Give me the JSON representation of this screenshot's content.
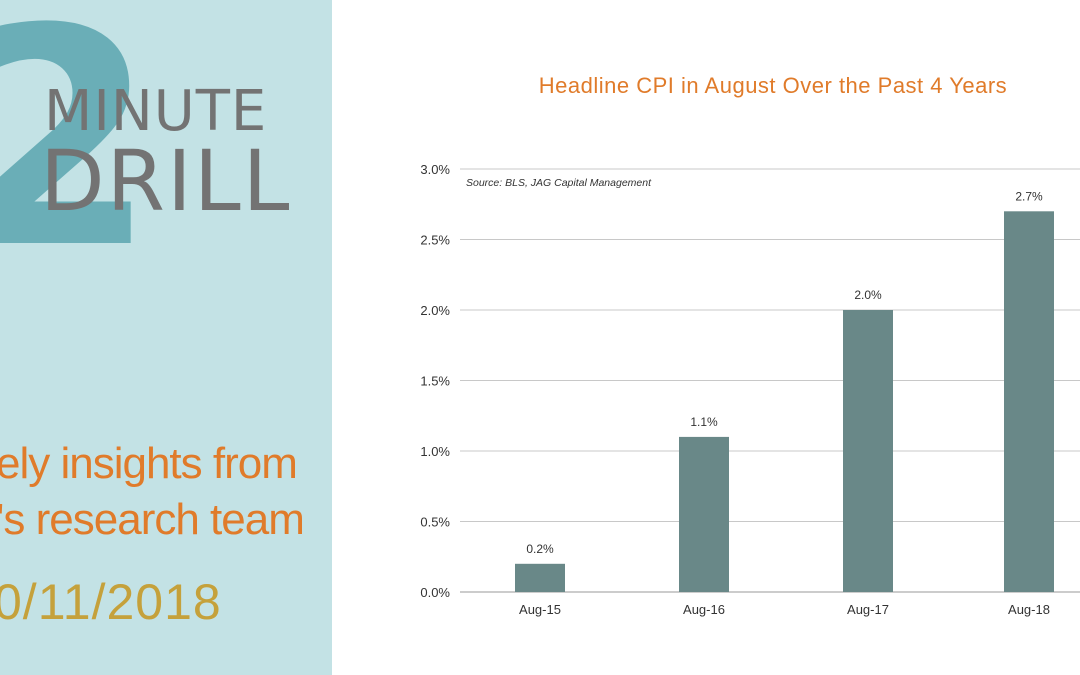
{
  "brand": {
    "line1": "MINUTE",
    "line2": "DRILL",
    "numeral": "2",
    "tagline_line1": "ely insights from",
    "tagline_line2": "'s research team",
    "date": "0/11/2018"
  },
  "colors": {
    "panel_bg": "#c3e2e5",
    "numeral": "#5ba6b0",
    "brand_text": "#737373",
    "tagline": "#e07b2a",
    "date": "#c5a13b",
    "title": "#e07b2a",
    "bar": "#698888",
    "grid": "#c8c8c8"
  },
  "chart_data": {
    "type": "bar",
    "title": "Headline CPI in August Over the Past 4 Years",
    "source_note": "Source: BLS, JAG Capital Management",
    "categories": [
      "Aug-15",
      "Aug-16",
      "Aug-17",
      "Aug-18"
    ],
    "values": [
      0.2,
      1.1,
      2.0,
      2.7
    ],
    "data_labels": [
      "0.2%",
      "1.1%",
      "2.0%",
      "2.7%"
    ],
    "yticks": [
      "0.0%",
      "0.5%",
      "1.0%",
      "1.5%",
      "2.0%",
      "2.5%",
      "3.0%"
    ],
    "ytick_values": [
      0,
      0.5,
      1.0,
      1.5,
      2.0,
      2.5,
      3.0
    ],
    "ylim": [
      0,
      3.0
    ],
    "xlabel": "",
    "ylabel": "",
    "grid": true,
    "legend": "none"
  }
}
